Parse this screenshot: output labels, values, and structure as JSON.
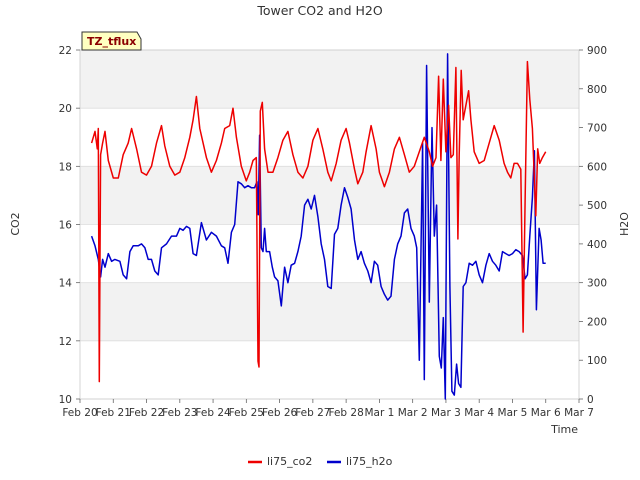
{
  "chart_data": {
    "type": "line",
    "title": "Tower CO2 and H2O",
    "xlabel": "Time",
    "ylabel_left": "CO2",
    "ylabel_right": "H2O",
    "ylim_left": [
      10,
      22
    ],
    "ylim_right": [
      0,
      900
    ],
    "xlim": [
      0,
      15
    ],
    "grid": "horizontal bands",
    "legend_placement": "bottom-center",
    "badge": "TZ_tflux",
    "x_ticks": [
      {
        "x": 0,
        "label": "Feb 20"
      },
      {
        "x": 1,
        "label": "Feb 21"
      },
      {
        "x": 2,
        "label": "Feb 22"
      },
      {
        "x": 3,
        "label": "Feb 23"
      },
      {
        "x": 4,
        "label": "Feb 24"
      },
      {
        "x": 5,
        "label": "Feb 25"
      },
      {
        "x": 6,
        "label": "Feb 26"
      },
      {
        "x": 7,
        "label": "Feb 27"
      },
      {
        "x": 8,
        "label": "Feb 28"
      },
      {
        "x": 9,
        "label": "Mar 1"
      },
      {
        "x": 10,
        "label": "Mar 2"
      },
      {
        "x": 11,
        "label": "Mar 3"
      },
      {
        "x": 12,
        "label": "Mar 4"
      },
      {
        "x": 13,
        "label": "Mar 5"
      },
      {
        "x": 14,
        "label": "Mar 6"
      },
      {
        "x": 15,
        "label": "Mar 7"
      }
    ],
    "y_ticks_left": [
      "10",
      "12",
      "14",
      "16",
      "18",
      "20",
      "22"
    ],
    "y_ticks_right": [
      "0",
      "100",
      "200",
      "300",
      "400",
      "500",
      "600",
      "700",
      "800",
      "900"
    ],
    "series": [
      {
        "name": "li75_co2",
        "color": "#ee0000",
        "axis": "left",
        "points": [
          [
            0.35,
            18.8
          ],
          [
            0.45,
            19.2
          ],
          [
            0.52,
            18.6
          ],
          [
            0.55,
            19.3
          ],
          [
            0.58,
            10.6
          ],
          [
            0.62,
            18.4
          ],
          [
            0.68,
            18.8
          ],
          [
            0.75,
            19.2
          ],
          [
            0.85,
            18.2
          ],
          [
            1.0,
            17.6
          ],
          [
            1.15,
            17.6
          ],
          [
            1.3,
            18.4
          ],
          [
            1.45,
            18.8
          ],
          [
            1.55,
            19.3
          ],
          [
            1.7,
            18.6
          ],
          [
            1.85,
            17.8
          ],
          [
            2.0,
            17.7
          ],
          [
            2.15,
            18.0
          ],
          [
            2.3,
            18.8
          ],
          [
            2.45,
            19.4
          ],
          [
            2.55,
            18.7
          ],
          [
            2.7,
            18.0
          ],
          [
            2.85,
            17.7
          ],
          [
            3.0,
            17.8
          ],
          [
            3.15,
            18.3
          ],
          [
            3.3,
            19.0
          ],
          [
            3.4,
            19.6
          ],
          [
            3.5,
            20.4
          ],
          [
            3.6,
            19.3
          ],
          [
            3.7,
            18.8
          ],
          [
            3.8,
            18.3
          ],
          [
            3.95,
            17.8
          ],
          [
            4.1,
            18.2
          ],
          [
            4.25,
            18.8
          ],
          [
            4.35,
            19.3
          ],
          [
            4.5,
            19.4
          ],
          [
            4.6,
            20.0
          ],
          [
            4.7,
            19.0
          ],
          [
            4.85,
            18.0
          ],
          [
            5.0,
            17.5
          ],
          [
            5.1,
            17.8
          ],
          [
            5.2,
            18.2
          ],
          [
            5.3,
            18.3
          ],
          [
            5.35,
            11.3
          ],
          [
            5.38,
            11.1
          ],
          [
            5.42,
            19.9
          ],
          [
            5.48,
            20.2
          ],
          [
            5.55,
            18.6
          ],
          [
            5.65,
            17.8
          ],
          [
            5.8,
            17.8
          ],
          [
            5.95,
            18.3
          ],
          [
            6.1,
            18.9
          ],
          [
            6.25,
            19.2
          ],
          [
            6.4,
            18.4
          ],
          [
            6.55,
            17.8
          ],
          [
            6.7,
            17.6
          ],
          [
            6.85,
            18.0
          ],
          [
            7.0,
            18.9
          ],
          [
            7.15,
            19.3
          ],
          [
            7.3,
            18.6
          ],
          [
            7.45,
            17.8
          ],
          [
            7.55,
            17.5
          ],
          [
            7.7,
            18.1
          ],
          [
            7.85,
            18.9
          ],
          [
            8.0,
            19.3
          ],
          [
            8.1,
            18.8
          ],
          [
            8.25,
            17.9
          ],
          [
            8.35,
            17.4
          ],
          [
            8.5,
            17.8
          ],
          [
            8.6,
            18.5
          ],
          [
            8.75,
            19.4
          ],
          [
            8.9,
            18.6
          ],
          [
            9.0,
            17.8
          ],
          [
            9.15,
            17.3
          ],
          [
            9.3,
            17.8
          ],
          [
            9.45,
            18.6
          ],
          [
            9.6,
            19.0
          ],
          [
            9.75,
            18.4
          ],
          [
            9.9,
            17.8
          ],
          [
            10.05,
            18.0
          ],
          [
            10.2,
            18.5
          ],
          [
            10.35,
            19.0
          ],
          [
            10.5,
            18.5
          ],
          [
            10.6,
            18.0
          ],
          [
            10.7,
            18.3
          ],
          [
            10.78,
            21.1
          ],
          [
            10.85,
            18.2
          ],
          [
            10.92,
            21.0
          ],
          [
            11.0,
            18.5
          ],
          [
            11.08,
            20.1
          ],
          [
            11.15,
            18.3
          ],
          [
            11.22,
            18.4
          ],
          [
            11.3,
            21.4
          ],
          [
            11.36,
            15.5
          ],
          [
            11.4,
            18.4
          ],
          [
            11.46,
            21.3
          ],
          [
            11.52,
            19.6
          ],
          [
            11.6,
            20.1
          ],
          [
            11.68,
            20.6
          ],
          [
            11.75,
            19.6
          ],
          [
            11.85,
            18.5
          ],
          [
            12.0,
            18.1
          ],
          [
            12.15,
            18.2
          ],
          [
            12.3,
            18.8
          ],
          [
            12.45,
            19.4
          ],
          [
            12.6,
            18.9
          ],
          [
            12.75,
            18.1
          ],
          [
            12.85,
            17.8
          ],
          [
            12.95,
            17.6
          ],
          [
            13.05,
            18.1
          ],
          [
            13.15,
            18.1
          ],
          [
            13.25,
            17.9
          ],
          [
            13.32,
            12.3
          ],
          [
            13.38,
            16.8
          ],
          [
            13.45,
            21.6
          ],
          [
            13.52,
            20.3
          ],
          [
            13.6,
            19.3
          ],
          [
            13.7,
            16.3
          ],
          [
            13.76,
            18.6
          ],
          [
            13.82,
            18.1
          ],
          [
            13.9,
            18.3
          ],
          [
            14.0,
            18.5
          ]
        ]
      },
      {
        "name": "li75_h2o",
        "color": "#0000cc",
        "axis": "right",
        "points": [
          [
            0.35,
            420
          ],
          [
            0.45,
            395
          ],
          [
            0.55,
            360
          ],
          [
            0.62,
            315
          ],
          [
            0.68,
            360
          ],
          [
            0.75,
            340
          ],
          [
            0.85,
            375
          ],
          [
            0.95,
            355
          ],
          [
            1.05,
            360
          ],
          [
            1.2,
            355
          ],
          [
            1.3,
            320
          ],
          [
            1.4,
            310
          ],
          [
            1.5,
            380
          ],
          [
            1.6,
            395
          ],
          [
            1.75,
            395
          ],
          [
            1.85,
            400
          ],
          [
            1.95,
            390
          ],
          [
            2.05,
            360
          ],
          [
            2.15,
            360
          ],
          [
            2.25,
            330
          ],
          [
            2.35,
            320
          ],
          [
            2.45,
            390
          ],
          [
            2.6,
            400
          ],
          [
            2.75,
            420
          ],
          [
            2.9,
            420
          ],
          [
            3.0,
            440
          ],
          [
            3.1,
            435
          ],
          [
            3.2,
            445
          ],
          [
            3.3,
            440
          ],
          [
            3.4,
            375
          ],
          [
            3.5,
            370
          ],
          [
            3.65,
            455
          ],
          [
            3.8,
            410
          ],
          [
            3.95,
            430
          ],
          [
            4.1,
            420
          ],
          [
            4.25,
            395
          ],
          [
            4.35,
            390
          ],
          [
            4.45,
            350
          ],
          [
            4.55,
            430
          ],
          [
            4.65,
            450
          ],
          [
            4.75,
            560
          ],
          [
            4.85,
            555
          ],
          [
            4.95,
            545
          ],
          [
            5.05,
            550
          ],
          [
            5.15,
            545
          ],
          [
            5.25,
            545
          ],
          [
            5.32,
            560
          ],
          [
            5.36,
            475
          ],
          [
            5.4,
            680
          ],
          [
            5.45,
            390
          ],
          [
            5.5,
            380
          ],
          [
            5.55,
            440
          ],
          [
            5.6,
            380
          ],
          [
            5.7,
            380
          ],
          [
            5.78,
            340
          ],
          [
            5.85,
            315
          ],
          [
            5.95,
            305
          ],
          [
            6.05,
            240
          ],
          [
            6.15,
            340
          ],
          [
            6.25,
            300
          ],
          [
            6.35,
            345
          ],
          [
            6.45,
            350
          ],
          [
            6.55,
            380
          ],
          [
            6.65,
            420
          ],
          [
            6.75,
            500
          ],
          [
            6.85,
            515
          ],
          [
            6.95,
            490
          ],
          [
            7.05,
            525
          ],
          [
            7.15,
            470
          ],
          [
            7.25,
            400
          ],
          [
            7.35,
            360
          ],
          [
            7.45,
            290
          ],
          [
            7.55,
            285
          ],
          [
            7.65,
            425
          ],
          [
            7.75,
            440
          ],
          [
            7.85,
            500
          ],
          [
            7.95,
            545
          ],
          [
            8.05,
            520
          ],
          [
            8.15,
            490
          ],
          [
            8.25,
            410
          ],
          [
            8.35,
            360
          ],
          [
            8.45,
            380
          ],
          [
            8.55,
            350
          ],
          [
            8.65,
            330
          ],
          [
            8.75,
            300
          ],
          [
            8.85,
            355
          ],
          [
            8.95,
            345
          ],
          [
            9.05,
            290
          ],
          [
            9.15,
            270
          ],
          [
            9.25,
            255
          ],
          [
            9.35,
            265
          ],
          [
            9.45,
            360
          ],
          [
            9.55,
            400
          ],
          [
            9.65,
            420
          ],
          [
            9.75,
            480
          ],
          [
            9.85,
            490
          ],
          [
            9.95,
            440
          ],
          [
            10.05,
            420
          ],
          [
            10.12,
            390
          ],
          [
            10.2,
            100
          ],
          [
            10.3,
            660
          ],
          [
            10.35,
            50
          ],
          [
            10.42,
            860
          ],
          [
            10.5,
            250
          ],
          [
            10.58,
            700
          ],
          [
            10.65,
            420
          ],
          [
            10.72,
            500
          ],
          [
            10.8,
            110
          ],
          [
            10.86,
            80
          ],
          [
            10.92,
            210
          ],
          [
            10.98,
            0
          ],
          [
            11.05,
            890
          ],
          [
            11.12,
            290
          ],
          [
            11.18,
            20
          ],
          [
            11.25,
            10
          ],
          [
            11.32,
            90
          ],
          [
            11.38,
            40
          ],
          [
            11.45,
            30
          ],
          [
            11.52,
            290
          ],
          [
            11.6,
            300
          ],
          [
            11.7,
            350
          ],
          [
            11.8,
            345
          ],
          [
            11.9,
            355
          ],
          [
            12.0,
            320
          ],
          [
            12.1,
            300
          ],
          [
            12.2,
            345
          ],
          [
            12.3,
            375
          ],
          [
            12.4,
            355
          ],
          [
            12.5,
            345
          ],
          [
            12.6,
            330
          ],
          [
            12.7,
            380
          ],
          [
            12.8,
            375
          ],
          [
            12.9,
            370
          ],
          [
            13.0,
            375
          ],
          [
            13.1,
            385
          ],
          [
            13.2,
            380
          ],
          [
            13.3,
            370
          ],
          [
            13.38,
            310
          ],
          [
            13.45,
            320
          ],
          [
            13.52,
            420
          ],
          [
            13.6,
            520
          ],
          [
            13.66,
            640
          ],
          [
            13.72,
            230
          ],
          [
            13.8,
            440
          ],
          [
            13.86,
            410
          ],
          [
            13.92,
            350
          ],
          [
            14.0,
            350
          ]
        ]
      }
    ]
  }
}
